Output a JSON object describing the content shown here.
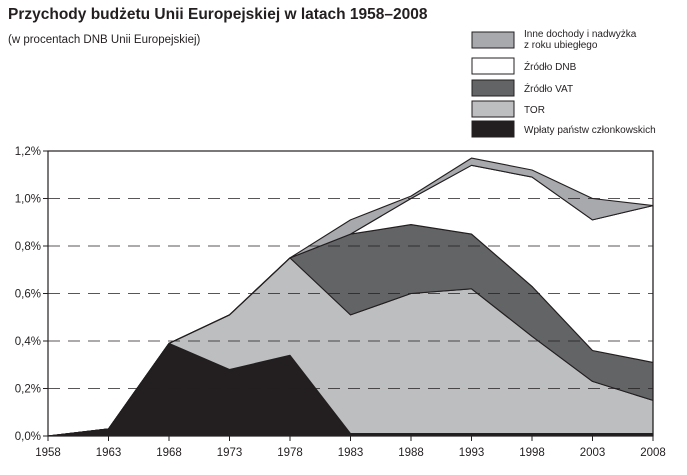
{
  "title": "Przychody budżetu Unii Europejskiej  w latach 1958–2008",
  "subtitle": "(w procentach DNB Unii Europejskiej)",
  "chart_data": {
    "type": "area",
    "stacked": true,
    "title": "Przychody budżetu Unii Europejskiej  w latach 1958–2008",
    "subtitle": "(w procentach DNB Unii Europejskiej)",
    "xlabel": "",
    "ylabel": "",
    "x": [
      1958,
      1963,
      1968,
      1973,
      1978,
      1983,
      1988,
      1993,
      1998,
      2003,
      2008
    ],
    "x_tick_labels": [
      "1958",
      "1963",
      "1968",
      "1973",
      "1978",
      "1983",
      "1988",
      "1993",
      "1998",
      "2003",
      "2008"
    ],
    "ylim": [
      0,
      1.2
    ],
    "y_ticks": [
      0,
      0.2,
      0.4,
      0.6,
      0.8,
      1.0,
      1.2
    ],
    "y_tick_labels": [
      "0,0%",
      "0,2%",
      "0,4%",
      "0,6%",
      "0,8%",
      "1,0%",
      "1,2%"
    ],
    "grid": "dashed horizontal lines",
    "legend_position": "top-right",
    "series": [
      {
        "name": "Wpłaty państw członkowskich",
        "color": "#231f20",
        "values": [
          0.0,
          0.03,
          0.39,
          0.28,
          0.34,
          0.01,
          0.01,
          0.01,
          0.01,
          0.01,
          0.01
        ]
      },
      {
        "name": "TOR",
        "color": "#bcbec0",
        "values": [
          0.0,
          0.0,
          0.0,
          0.23,
          0.41,
          0.5,
          0.59,
          0.61,
          0.41,
          0.22,
          0.14
        ]
      },
      {
        "name": "Źródło VAT",
        "color": "#636466",
        "values": [
          0.0,
          0.0,
          0.0,
          0.0,
          0.0,
          0.34,
          0.29,
          0.23,
          0.21,
          0.13,
          0.16
        ]
      },
      {
        "name": "Źródło DNB",
        "color": "#ffffff",
        "values": [
          0.0,
          0.0,
          0.0,
          0.0,
          0.0,
          0.0,
          0.11,
          0.29,
          0.46,
          0.55,
          0.66
        ]
      },
      {
        "name": "Inne dochody i nadwyżka\nz roku ubiegłego",
        "color": "#a7a9ac",
        "values": [
          0.0,
          0.0,
          0.0,
          0.0,
          0.0,
          0.06,
          0.01,
          0.03,
          0.03,
          0.09,
          0.0
        ]
      }
    ],
    "legend": [
      {
        "lines": [
          "Inne dochody i nadwyżka",
          "z roku ubiegłego"
        ],
        "color": "#a7a9ac"
      },
      {
        "lines": [
          "Źródło DNB"
        ],
        "color": "#ffffff"
      },
      {
        "lines": [
          "Źródło VAT"
        ],
        "color": "#636466"
      },
      {
        "lines": [
          "TOR"
        ],
        "color": "#bcbec0"
      },
      {
        "lines": [
          "Wpłaty państw członkowskich"
        ],
        "color": "#231f20"
      }
    ]
  }
}
